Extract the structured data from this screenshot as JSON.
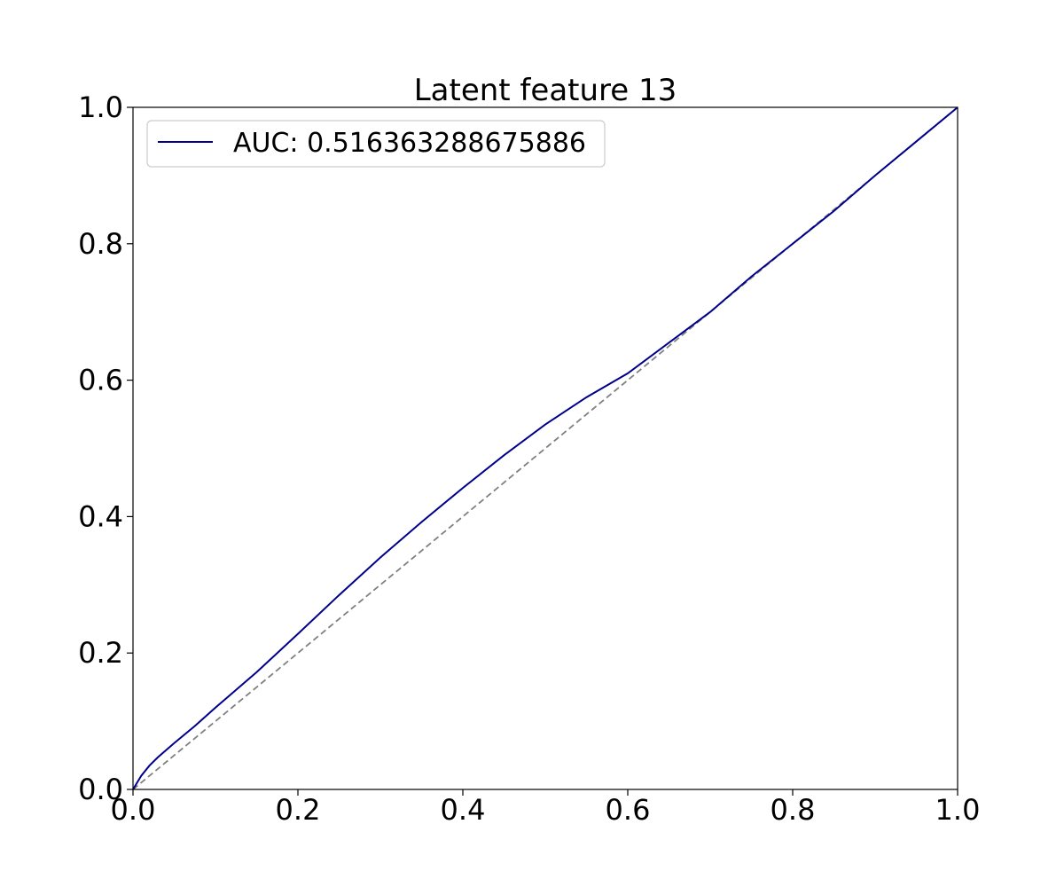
{
  "chart_data": {
    "type": "line",
    "title": "Latent feature 13",
    "xlabel": "",
    "ylabel": "",
    "xlim": [
      0.0,
      1.0
    ],
    "ylim": [
      0.0,
      1.0
    ],
    "x_ticks": [
      "0.0",
      "0.2",
      "0.4",
      "0.6",
      "0.8",
      "1.0"
    ],
    "y_ticks": [
      "0.0",
      "0.2",
      "0.4",
      "0.6",
      "0.8",
      "1.0"
    ],
    "grid": false,
    "legend_position": "upper-left",
    "series": [
      {
        "name": "AUC: 0.516363288675886",
        "color": "#00008b",
        "style": "solid",
        "x": [
          0.0,
          0.01,
          0.02,
          0.03,
          0.05,
          0.075,
          0.1,
          0.15,
          0.2,
          0.25,
          0.3,
          0.35,
          0.4,
          0.45,
          0.5,
          0.55,
          0.6,
          0.65,
          0.7,
          0.75,
          0.8,
          0.85,
          0.9,
          0.95,
          1.0
        ],
        "y": [
          0.0,
          0.02,
          0.035,
          0.047,
          0.068,
          0.093,
          0.12,
          0.172,
          0.228,
          0.285,
          0.34,
          0.392,
          0.442,
          0.49,
          0.535,
          0.575,
          0.61,
          0.655,
          0.7,
          0.752,
          0.8,
          0.848,
          0.9,
          0.95,
          1.0
        ]
      },
      {
        "name": "",
        "color": "#808080",
        "style": "dashed",
        "x": [
          0.0,
          1.0
        ],
        "y": [
          0.0,
          1.0
        ]
      }
    ]
  }
}
